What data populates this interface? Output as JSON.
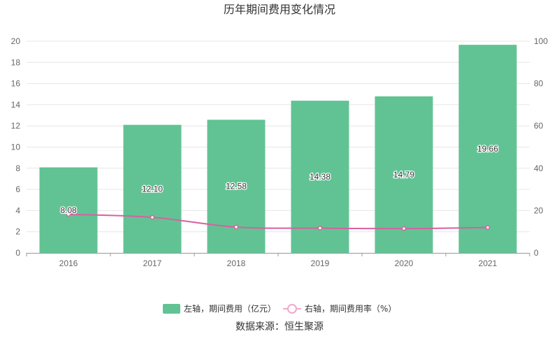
{
  "chart_data": {
    "type": "bar",
    "title": "历年期间费用变化情况",
    "categories": [
      "2016",
      "2017",
      "2018",
      "2019",
      "2020",
      "2021"
    ],
    "series": [
      {
        "name": "左轴，期间费用（亿元）",
        "type": "bar",
        "axis": "left",
        "color": "#61c394",
        "values": [
          8.08,
          12.1,
          12.58,
          14.38,
          14.79,
          19.66
        ],
        "labels": [
          "8.08",
          "12.10",
          "12.58",
          "14.38",
          "14.79",
          "19.66"
        ]
      },
      {
        "name": "右轴，期间费用率（%）",
        "type": "line",
        "axis": "right",
        "color": "#d9609f",
        "values": [
          18.2,
          16.8,
          12.2,
          11.7,
          11.5,
          12.0
        ]
      }
    ],
    "y_left": {
      "min": 0,
      "max": 20,
      "ticks": [
        0,
        2,
        4,
        6,
        8,
        10,
        12,
        14,
        16,
        18,
        20
      ]
    },
    "y_right": {
      "min": 0,
      "max": 100,
      "ticks": [
        0,
        20,
        40,
        60,
        80,
        100
      ]
    },
    "grid": true,
    "legend_position": "bottom"
  },
  "source_text": "数据来源：恒生聚源"
}
